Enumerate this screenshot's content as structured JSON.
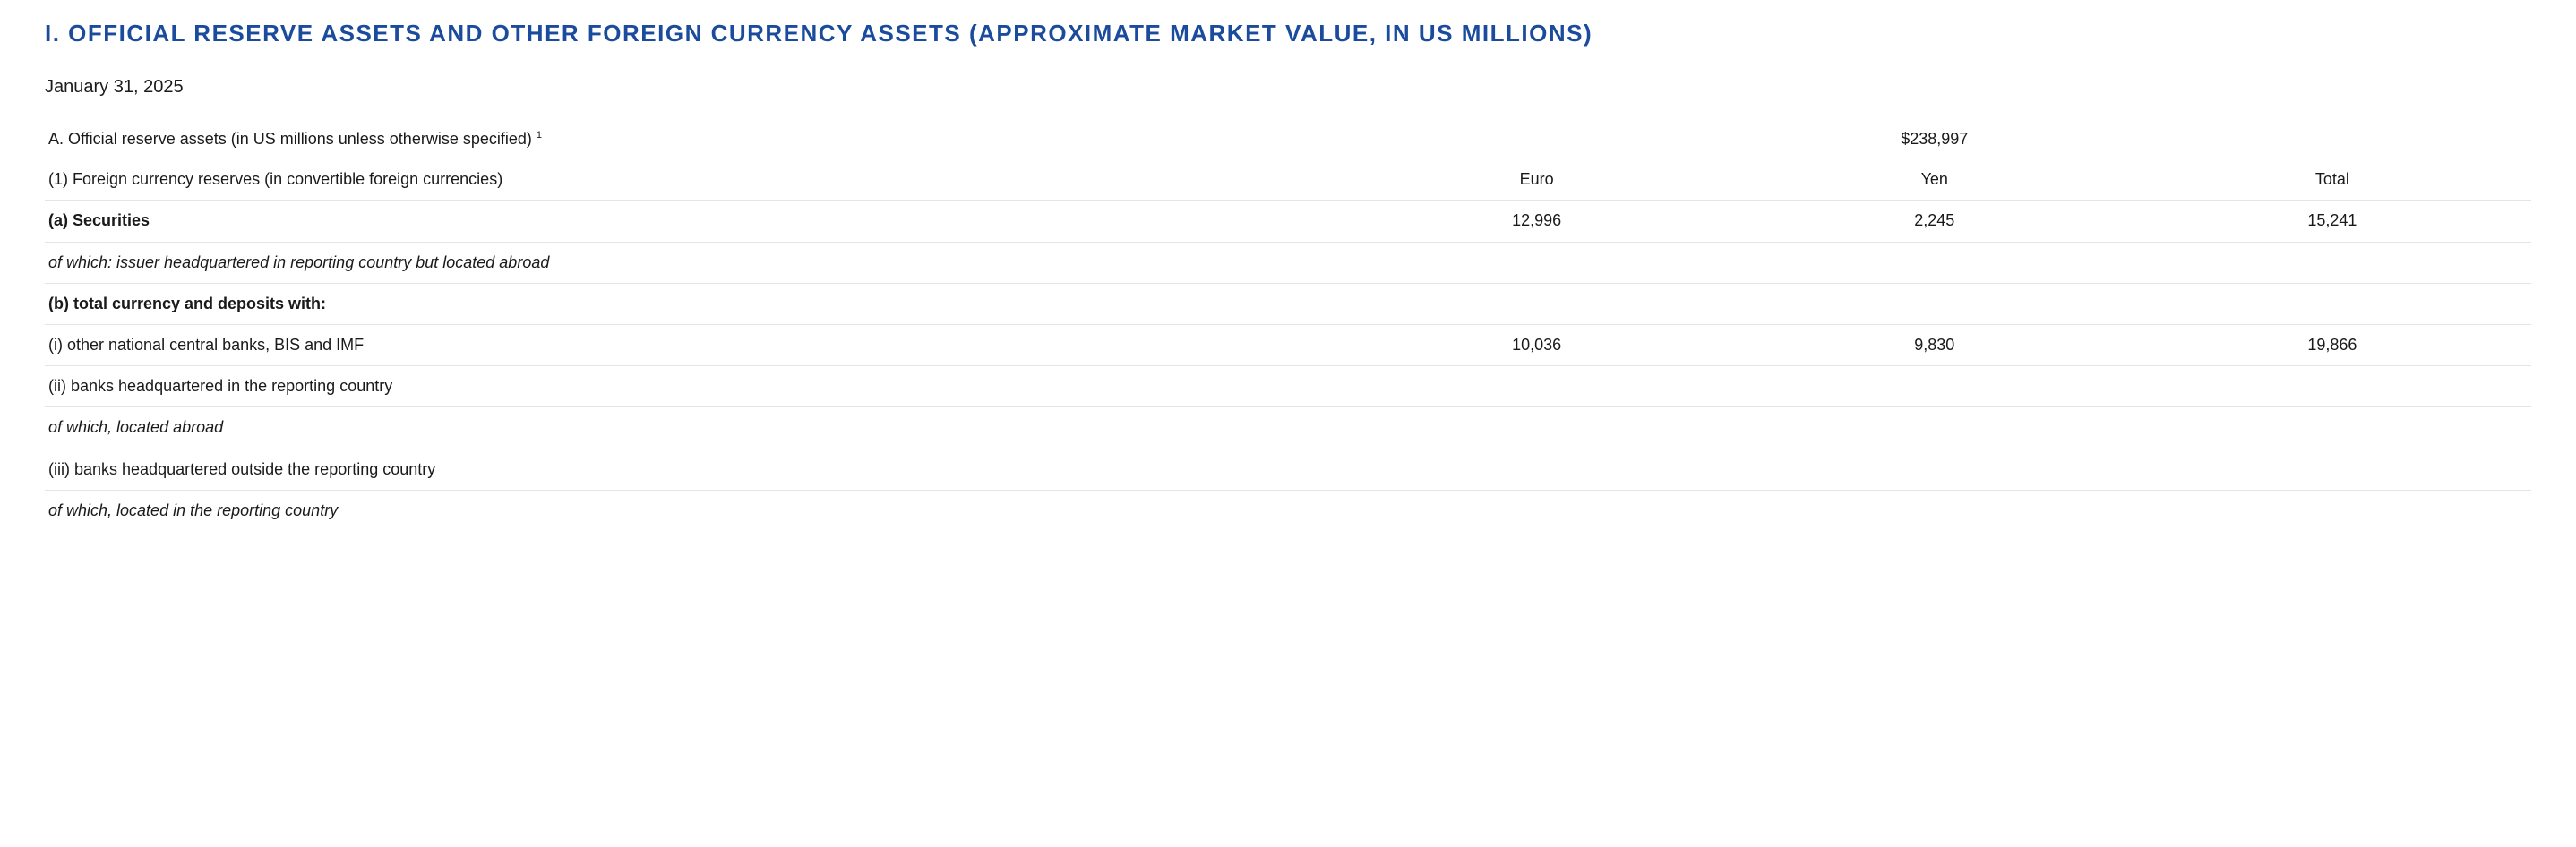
{
  "section": {
    "title": "I. OFFICIAL RESERVE ASSETS AND OTHER FOREIGN CURRENCY ASSETS (APPROXIMATE MARKET VALUE, IN US MILLIONS)",
    "date": "January 31, 2025"
  },
  "colors": {
    "heading": "#1a4b9c",
    "text": "#1a1a1a",
    "border": "#e5e5e5",
    "background": "#ffffff"
  },
  "typography": {
    "heading_fontsize": 26,
    "body_fontsize": 18,
    "date_fontsize": 20,
    "heading_letterspacing": 1.5
  },
  "columns": {
    "label_width_pct": 52,
    "value_width_pct": 16
  },
  "rows": [
    {
      "label": "A. Official reserve assets (in US millions unless otherwise specified)",
      "footnote": "1",
      "euro": "",
      "yen": "$238,997",
      "total": "",
      "indent": 0,
      "bold": false,
      "italic": false,
      "noborder": true
    },
    {
      "label": "(1) Foreign currency reserves (in convertible foreign currencies)",
      "footnote": "",
      "euro": "Euro",
      "yen": "Yen",
      "total": "Total",
      "indent": 1,
      "bold": false,
      "italic": false,
      "noborder": false
    },
    {
      "label": "(a) Securities",
      "footnote": "",
      "euro": "12,996",
      "yen": "2,245",
      "total": "15,241",
      "indent": 2,
      "bold": true,
      "italic": false,
      "noborder": false
    },
    {
      "label": "of which: issuer headquartered in reporting country but located abroad",
      "footnote": "",
      "euro": "",
      "yen": "",
      "total": "",
      "indent": 2,
      "bold": false,
      "italic": true,
      "noborder": false
    },
    {
      "label": "(b) total currency and deposits with:",
      "footnote": "",
      "euro": "",
      "yen": "",
      "total": "",
      "indent": 2,
      "bold": true,
      "italic": false,
      "noborder": false
    },
    {
      "label": "(i) other national central banks, BIS and IMF",
      "footnote": "",
      "euro": "10,036",
      "yen": "9,830",
      "total": "19,866",
      "indent": 3,
      "bold": false,
      "italic": false,
      "noborder": false
    },
    {
      "label": "(ii) banks headquartered in the reporting country",
      "footnote": "",
      "euro": "",
      "yen": "",
      "total": "",
      "indent": 3,
      "bold": false,
      "italic": false,
      "noborder": false
    },
    {
      "label": "of which, located abroad",
      "footnote": "",
      "euro": "",
      "yen": "",
      "total": "",
      "indent": 3,
      "bold": false,
      "italic": true,
      "noborder": false
    },
    {
      "label": "(iii) banks headquartered outside the reporting country",
      "footnote": "",
      "euro": "",
      "yen": "",
      "total": "",
      "indent": 3,
      "bold": false,
      "italic": false,
      "noborder": false
    },
    {
      "label": "of which, located in the reporting country",
      "footnote": "",
      "euro": "",
      "yen": "",
      "total": "",
      "indent": 3,
      "bold": false,
      "italic": true,
      "noborder": true
    }
  ]
}
